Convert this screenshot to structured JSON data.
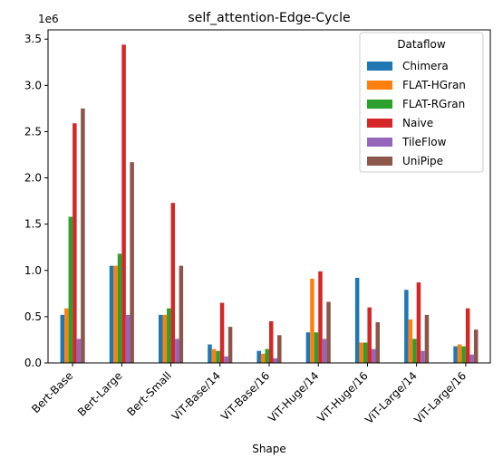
{
  "chart_data": {
    "type": "bar",
    "title": "self_attention-Edge-Cycle",
    "xlabel": "Shape",
    "ylabel": "",
    "y_scale_label": "1e6",
    "ylim": [
      0,
      3600000
    ],
    "yticks": [
      0,
      500000,
      1000000,
      1500000,
      2000000,
      2500000,
      3000000,
      3500000
    ],
    "ytick_labels": [
      "0.0",
      "0.5",
      "1.0",
      "1.5",
      "2.0",
      "2.5",
      "3.0",
      "3.5"
    ],
    "categories": [
      "Bert-Base",
      "Bert-Large",
      "Bert-Small",
      "ViT-Base/14",
      "ViT-Base/16",
      "ViT-Huge/14",
      "ViT-Huge/16",
      "ViT-Large/14",
      "ViT-Large/16"
    ],
    "legend_title": "Dataflow",
    "legend_position": "top-right",
    "grid": false,
    "series": [
      {
        "name": "Chimera",
        "color": "#1f77b4",
        "values": [
          520000,
          1050000,
          520000,
          200000,
          130000,
          330000,
          920000,
          790000,
          180000
        ]
      },
      {
        "name": "FLAT-HGran",
        "color": "#ff7f0e",
        "values": [
          590000,
          1050000,
          520000,
          150000,
          100000,
          910000,
          220000,
          470000,
          200000
        ]
      },
      {
        "name": "FLAT-RGran",
        "color": "#2ca02c",
        "values": [
          1580000,
          1180000,
          590000,
          130000,
          150000,
          330000,
          220000,
          260000,
          180000
        ]
      },
      {
        "name": "Naive",
        "color": "#d62728",
        "values": [
          2590000,
          3440000,
          1730000,
          650000,
          450000,
          990000,
          600000,
          870000,
          590000
        ]
      },
      {
        "name": "TileFlow",
        "color": "#9467bd",
        "values": [
          260000,
          520000,
          260000,
          70000,
          50000,
          260000,
          150000,
          130000,
          90000
        ]
      },
      {
        "name": "UniPipe",
        "color": "#8c564b",
        "values": [
          2750000,
          2170000,
          1050000,
          390000,
          300000,
          660000,
          440000,
          520000,
          360000
        ]
      }
    ]
  }
}
